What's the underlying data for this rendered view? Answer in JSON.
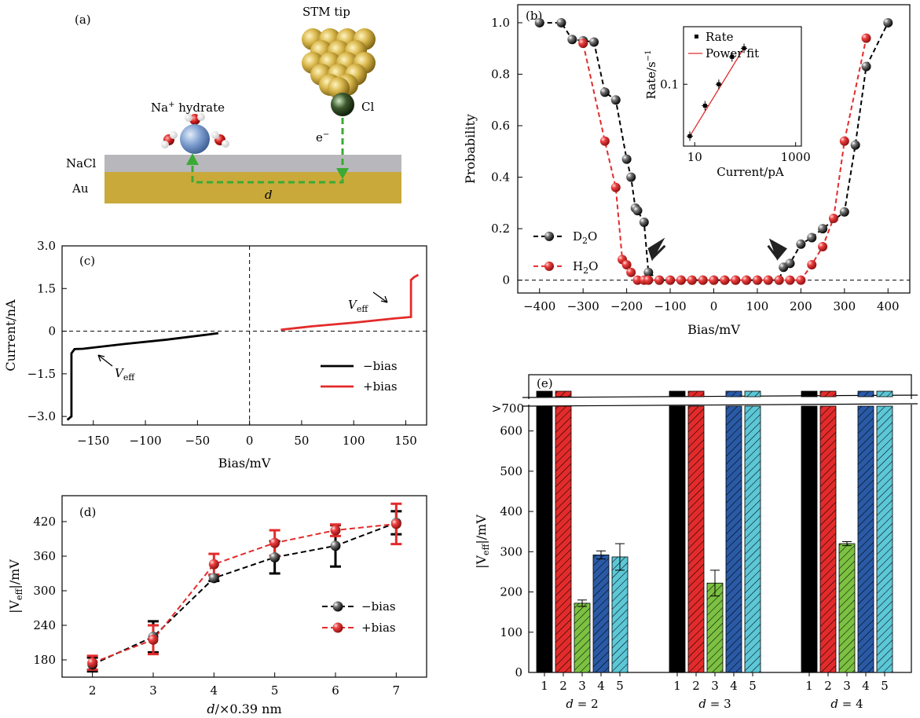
{
  "colors": {
    "black": "#000000",
    "red": "#e32b2b",
    "green": "#7cc142",
    "blue": "#2a5aa6",
    "cyan": "#5cc7d6",
    "gold": "#c9a93a",
    "nacl": "#b8b8bc",
    "dashgreen": "#3aaa35"
  },
  "panel_a": {
    "label": "(a)",
    "tip_label": "STM tip",
    "na_label_pre": "Na",
    "na_label_sup": "+",
    "na_label_post": " hydrate",
    "cl_label": "Cl",
    "electron_label": "e",
    "electron_sup": "−",
    "nacl_label": "NaCl",
    "au_label": "Au",
    "d_label": "d"
  },
  "chart_data": [
    {
      "id": "b",
      "type": "line",
      "label": "(b)",
      "xlabel": "Bias/mV",
      "ylabel": "Probability",
      "xlim": [
        -450,
        450
      ],
      "ylim": [
        -0.05,
        1.07
      ],
      "xticks": [
        -400,
        -300,
        -200,
        -100,
        0,
        100,
        200,
        300,
        400
      ],
      "xtick_labels": [
        "−400",
        "−300",
        "−200",
        "−100",
        "0",
        "100",
        "200",
        "300",
        "400"
      ],
      "yticks": [
        0,
        0.2,
        0.4,
        0.6,
        0.8,
        1.0
      ],
      "ytick_labels": [
        "0",
        "0.2",
        "0.4",
        "0.6",
        "0.8",
        "1.0"
      ],
      "legend": {
        "position": "bottom-left",
        "entries": [
          {
            "text": "D",
            "sub": "2",
            "post": "O"
          },
          {
            "text": "H",
            "sub": "2",
            "post": "O"
          }
        ]
      },
      "series": [
        {
          "name": "D2O",
          "color": "#000000",
          "x": [
            -400,
            -350,
            -325,
            -300,
            -275,
            -250,
            -225,
            -200,
            -190,
            -180,
            -175,
            -160,
            -150,
            -125,
            -100,
            -75,
            -50,
            -25,
            0,
            25,
            50,
            75,
            100,
            125,
            150,
            160,
            175,
            200,
            225,
            250,
            300,
            325,
            350,
            400
          ],
          "y": [
            1.0,
            1.0,
            0.935,
            0.93,
            0.925,
            0.73,
            0.7,
            0.47,
            0.4,
            0.28,
            0.27,
            0.225,
            0.03,
            0,
            0,
            0,
            0,
            0,
            0,
            0,
            0,
            0,
            0,
            0,
            0,
            0.05,
            0.065,
            0.14,
            0.165,
            0.2,
            0.265,
            0.525,
            0.83,
            1.0
          ]
        },
        {
          "name": "H2O",
          "color": "#e32b2b",
          "x": [
            -300,
            -250,
            -225,
            -210,
            -200,
            -190,
            -175,
            -160,
            -150,
            -125,
            -100,
            -75,
            -50,
            -25,
            0,
            25,
            50,
            75,
            100,
            125,
            150,
            175,
            200,
            225,
            250,
            275,
            300,
            350
          ],
          "y": [
            0.92,
            0.54,
            0.36,
            0.08,
            0.06,
            0.03,
            0,
            0,
            0,
            0,
            0,
            0,
            0,
            0,
            0,
            0,
            0,
            0,
            0,
            0,
            0,
            0,
            0,
            0.06,
            0.13,
            0.24,
            0.54,
            0.94
          ]
        }
      ],
      "arrows_at": [
        -150,
        150
      ],
      "inset": {
        "type": "scatter",
        "xlabel": "Current/pA",
        "ylabel": "Rate/s",
        "ylabel_sup": "−1",
        "xscale": "log",
        "yscale": "log",
        "xlim": [
          6,
          1300
        ],
        "ylim": [
          0.016,
          0.55
        ],
        "xtick_labels": [
          "10",
          "1000"
        ],
        "ytick_labels": [
          "0.1"
        ],
        "legend": [
          "Rate",
          "Power fit"
        ],
        "points": {
          "x": [
            8,
            16,
            30,
            55,
            95
          ],
          "y": [
            0.0215,
            0.053,
            0.1,
            0.225,
            0.29
          ]
        },
        "fit": {
          "x": [
            8,
            95
          ],
          "y": [
            0.0215,
            0.295
          ]
        }
      }
    },
    {
      "id": "c",
      "type": "line",
      "label": "(c)",
      "xlabel": "Bias/mV",
      "ylabel": "Current/nA",
      "xlim": [
        -180,
        170
      ],
      "ylim": [
        -3.3,
        3.0
      ],
      "xticks": [
        -150,
        -100,
        -50,
        0,
        50,
        100,
        150
      ],
      "xtick_labels": [
        "−150",
        "−100",
        "−50",
        "0",
        "50",
        "100",
        "150"
      ],
      "yticks": [
        -3.0,
        -1.5,
        0,
        1.5,
        3.0
      ],
      "ytick_labels": [
        "−3.0",
        "−1.5",
        "0",
        "1.5",
        "3.0"
      ],
      "annotations": [
        "V",
        "eff"
      ],
      "legend": {
        "position": "bottom-right",
        "entries": [
          "−bias",
          "+bias"
        ]
      },
      "series": [
        {
          "name": "−bias",
          "color": "#000000",
          "x": [
            -175,
            -171,
            -171,
            -168,
            -160,
            -120,
            -80,
            -40,
            -30
          ],
          "y": [
            -3.12,
            -3.0,
            -0.78,
            -0.63,
            -0.62,
            -0.45,
            -0.3,
            -0.12,
            -0.07
          ]
        },
        {
          "name": "+bias",
          "color": "#e32b2b",
          "x": [
            30,
            60,
            100,
            140,
            155,
            155,
            158,
            162
          ],
          "y": [
            0.05,
            0.17,
            0.3,
            0.45,
            0.5,
            1.8,
            1.9,
            1.98
          ]
        }
      ]
    },
    {
      "id": "d",
      "type": "line",
      "label": "(d)",
      "xlabel": "/×0.39 nm",
      "xlabel_italic": "d",
      "ylabel": "|V",
      "ylabel_sub": "eff",
      "ylabel_post": "|/mV",
      "xlim": [
        1.5,
        7.5
      ],
      "ylim": [
        150,
        465
      ],
      "xticks": [
        2,
        3,
        4,
        5,
        6,
        7
      ],
      "xtick_labels": [
        "2",
        "3",
        "4",
        "5",
        "6",
        "7"
      ],
      "yticks": [
        180,
        240,
        300,
        360,
        420
      ],
      "ytick_labels": [
        "180",
        "240",
        "300",
        "360",
        "420"
      ],
      "legend": {
        "position": "bottom-right",
        "entries": [
          "−bias",
          "+bias"
        ]
      },
      "series": [
        {
          "name": "−bias",
          "color": "#000000",
          "x": [
            2,
            3,
            4,
            5,
            6,
            7
          ],
          "y": [
            172,
            220,
            322,
            358,
            378,
            418
          ],
          "err": [
            12,
            27,
            5,
            28,
            36,
            20
          ]
        },
        {
          "name": "+bias",
          "color": "#e32b2b",
          "x": [
            2,
            3,
            4,
            5,
            6,
            7
          ],
          "y": [
            175,
            215,
            346,
            383,
            405,
            416
          ],
          "err": [
            12,
            25,
            18,
            22,
            10,
            35
          ]
        }
      ]
    },
    {
      "id": "e",
      "type": "bar",
      "label": "(e)",
      "ylabel": "|V",
      "ylabel_sub": "eff",
      "ylabel_post": "|/mV",
      "ylim": [
        0,
        650
      ],
      "yticks": [
        0,
        100,
        200,
        300,
        400,
        500,
        600
      ],
      "ytick_labels": [
        "0",
        "100",
        "200",
        "300",
        "400",
        "500",
        "600"
      ],
      "break_label": ">700",
      "bar_labels": [
        "1",
        "2",
        "3",
        "4",
        "5"
      ],
      "bar_colors": [
        "#000000",
        "#e32b2b",
        "#7cc142",
        "#2a5aa6",
        "#5cc7d6"
      ],
      "groups": [
        {
          "label": "d = 2",
          "values": [
            ">700",
            ">700",
            172,
            292,
            287
          ],
          "err": [
            0,
            0,
            8,
            10,
            33
          ]
        },
        {
          "label": "d = 3",
          "values": [
            ">700",
            ">700",
            222,
            ">700",
            ">700"
          ],
          "err": [
            0,
            0,
            32,
            0,
            0
          ]
        },
        {
          "label": "d = 4",
          "values": [
            ">700",
            ">700",
            320,
            ">700",
            ">700"
          ],
          "err": [
            0,
            0,
            5,
            0,
            0
          ]
        }
      ]
    }
  ]
}
